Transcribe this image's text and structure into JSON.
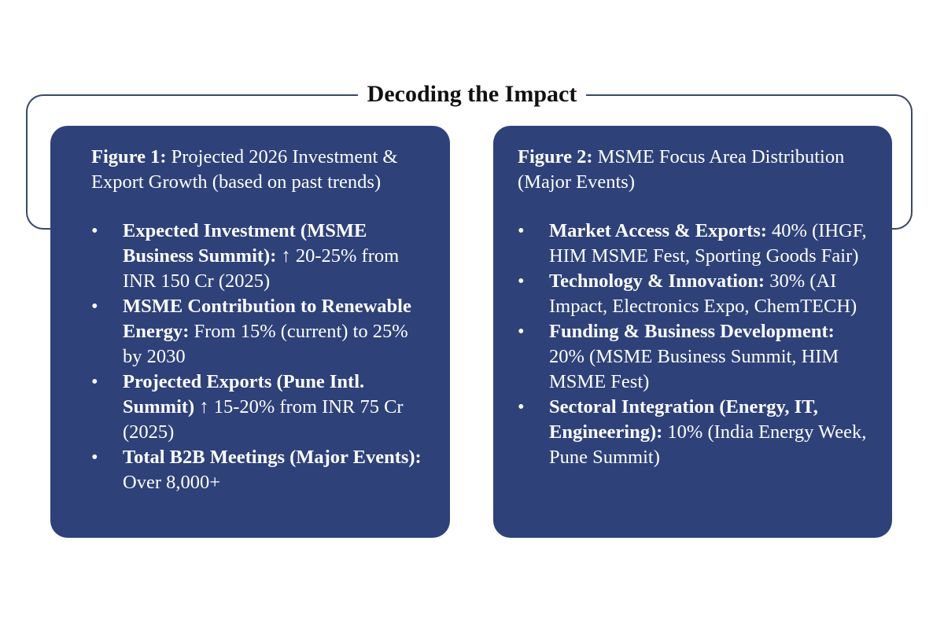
{
  "title": "Decoding the Impact",
  "colors": {
    "card": "#2e4179",
    "line": "#3a4868",
    "text": "#ffffff"
  },
  "figure1": {
    "label": "Figure 1:",
    "caption": " Projected 2026 Investment & Export Growth (based on past trends)",
    "items": [
      {
        "bold": "Expected Investment (MSME Business Summit):",
        "text": " ↑ 20-25% from INR 150 Cr (2025)"
      },
      {
        "bold": "MSME Contribution to Renewable Energy:",
        "text": " From 15% (current) to 25% by 2030"
      },
      {
        "bold": "Projected Exports (Pune Intl. Summit)",
        "text": " ↑ 15-20% from INR 75 Cr (2025)"
      },
      {
        "bold": "Total B2B Meetings (Major Events):",
        "text": " Over 8,000+"
      }
    ]
  },
  "figure2": {
    "label": "Figure 2:",
    "caption": " MSME Focus Area Distribution (Major Events)",
    "items": [
      {
        "bold": "Market Access & Exports:",
        "text": " 40% (IHGF, HIM MSME Fest, Sporting Goods Fair)"
      },
      {
        "bold": "Technology & Innovation:",
        "text": " 30% (AI Impact, Electronics Expo, ChemTECH)"
      },
      {
        "bold": "Funding & Business Development:",
        "text": " 20% (MSME Business Summit, HIM MSME Fest)"
      },
      {
        "bold": "Sectoral Integration (Energy, IT, Engineering):",
        "text": " 10% (India Energy Week, Pune Summit)"
      }
    ]
  }
}
